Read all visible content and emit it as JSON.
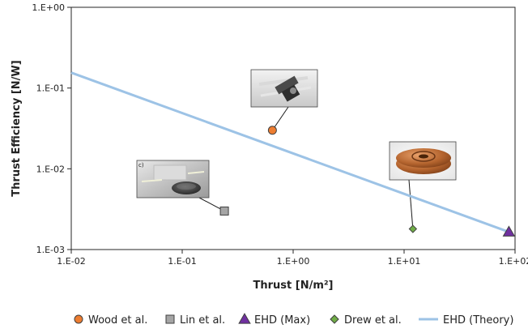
{
  "chart_data": {
    "type": "scatter",
    "title": "",
    "xlabel": "Thrust [N/m²]",
    "ylabel": "Thrust Efficiency [N/W]",
    "x_scale": "log",
    "y_scale": "log",
    "xlim": [
      0.01,
      100
    ],
    "ylim": [
      0.001,
      1
    ],
    "x_ticks": [
      "1.E-02",
      "1.E-01",
      "1.E+00",
      "1.E+01",
      "1.E+02"
    ],
    "y_ticks": [
      "1.E-03",
      "1.E-02",
      "1.E-01",
      "1.E+00"
    ],
    "grid": false,
    "legend_position": "bottom",
    "series": [
      {
        "name": "Wood et al.",
        "marker": "circle",
        "color": "#ed7d31",
        "points": [
          {
            "x": 0.65,
            "y": 0.03
          }
        ]
      },
      {
        "name": "Lin et al.",
        "marker": "square",
        "color": "#a5a5a5",
        "points": [
          {
            "x": 0.24,
            "y": 0.003
          }
        ]
      },
      {
        "name": "EHD (Max)",
        "marker": "triangle",
        "color": "#7030a0",
        "points": [
          {
            "x": 88,
            "y": 0.00165
          }
        ]
      },
      {
        "name": "Drew et al.",
        "marker": "diamond",
        "color": "#70ad47",
        "points": [
          {
            "x": 12,
            "y": 0.0018
          }
        ]
      },
      {
        "name": "EHD (Theory)",
        "marker": "line",
        "color": "#9dc3e6",
        "points": [
          {
            "x": 0.01,
            "y": 0.155
          },
          {
            "x": 88,
            "y": 0.00165
          }
        ]
      }
    ],
    "annotations": [
      {
        "type": "photo",
        "label": "",
        "attached_to": "Wood et al."
      },
      {
        "type": "photo",
        "label": "c)",
        "attached_to": "Lin et al."
      },
      {
        "type": "photo",
        "label": "",
        "attached_to": "Drew et al."
      }
    ]
  }
}
